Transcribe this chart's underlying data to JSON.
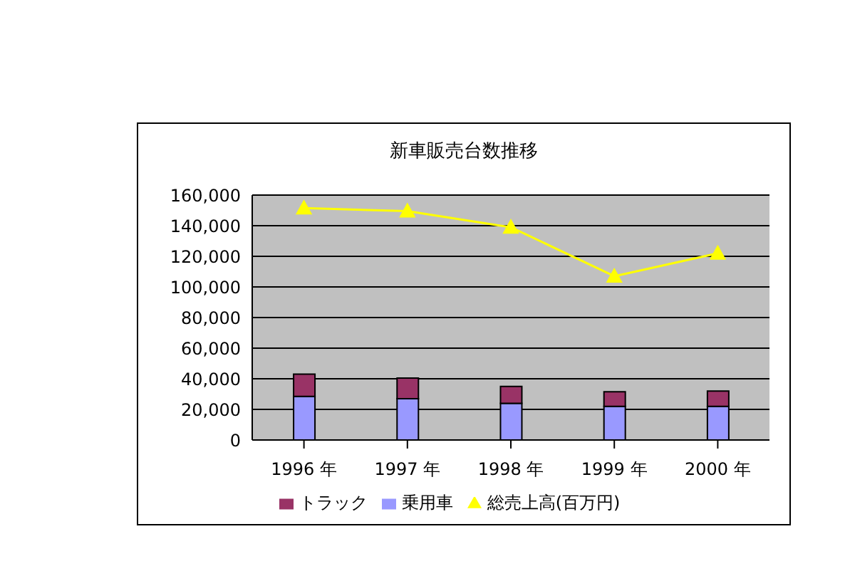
{
  "chart_data": {
    "type": "bar",
    "title": "新車販売台数推移",
    "stacked": true,
    "categories": [
      "1996 年",
      "1997 年",
      "1998 年",
      "1999 年",
      "2000 年"
    ],
    "series": [
      {
        "name": "乗用車",
        "color": "#9999ff",
        "values": [
          28500,
          27000,
          24000,
          22000,
          22000
        ]
      },
      {
        "name": "トラック",
        "color": "#993366",
        "values": [
          14500,
          13500,
          11000,
          9500,
          10000
        ]
      },
      {
        "name": "総売上高(百万円)",
        "type": "line",
        "color": "#ffff00",
        "marker": "triangle",
        "values": [
          151500,
          149500,
          139000,
          107000,
          122000
        ]
      }
    ],
    "ylim": [
      0,
      160000
    ],
    "yticks": [
      0,
      {
        "value": 20000,
        "label": "20,000"
      },
      {
        "value": 40000,
        "label": "40,000"
      },
      {
        "value": 60000,
        "label": "60,000"
      },
      {
        "value": 80000,
        "label": "80,000"
      },
      {
        "value": 100000,
        "label": "100,000"
      },
      {
        "value": 120000,
        "label": "120,000"
      },
      {
        "value": 140000,
        "label": "140,000"
      },
      {
        "value": 160000,
        "label": "160,000"
      }
    ],
    "grid": "y",
    "legend": "bottom"
  }
}
